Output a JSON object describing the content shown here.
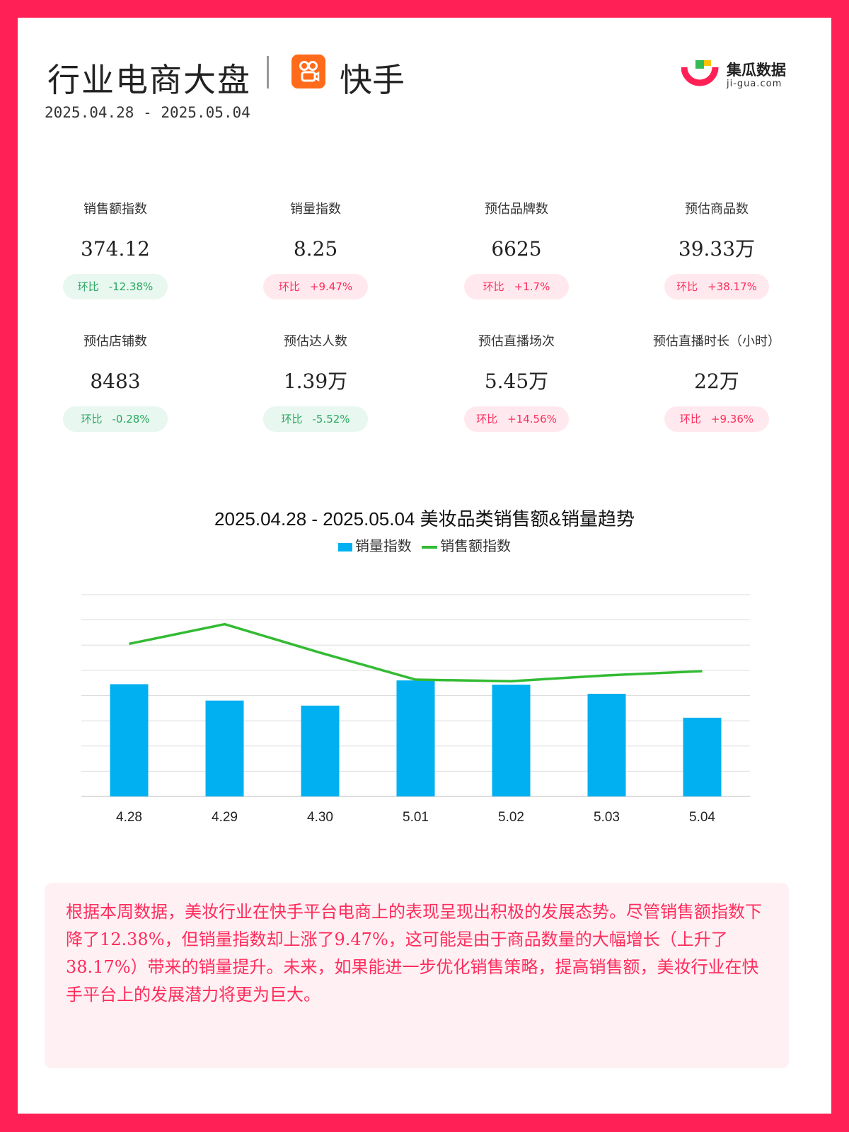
{
  "header": {
    "title": "行业电商大盘",
    "platform": "快手",
    "date_range": "2025.04.28 - 2025.05.04"
  },
  "brand": {
    "name": "集瓜数据",
    "url": "ji-gua.com"
  },
  "stats": [
    {
      "label": "销售额指数",
      "value": "374.12",
      "badge_prefix": "环比",
      "badge_value": "-12.38%",
      "trend": "down"
    },
    {
      "label": "销量指数",
      "value": "8.25",
      "badge_prefix": "环比",
      "badge_value": "+9.47%",
      "trend": "up"
    },
    {
      "label": "预估品牌数",
      "value": "6625",
      "badge_prefix": "环比",
      "badge_value": "+1.7%",
      "trend": "up"
    },
    {
      "label": "预估商品数",
      "value": "39.33万",
      "badge_prefix": "环比",
      "badge_value": "+38.17%",
      "trend": "up"
    },
    {
      "label": "预估店铺数",
      "value": "8483",
      "badge_prefix": "环比",
      "badge_value": "-0.28%",
      "trend": "down"
    },
    {
      "label": "预估达人数",
      "value": "1.39万",
      "badge_prefix": "环比",
      "badge_value": "-5.52%",
      "trend": "down"
    },
    {
      "label": "预估直播场次",
      "value": "5.45万",
      "badge_prefix": "环比",
      "badge_value": "+14.56%",
      "trend": "up"
    },
    {
      "label": "预估直播时长（小时）",
      "value": "22万",
      "badge_prefix": "环比",
      "badge_value": "+9.36%",
      "trend": "up"
    }
  ],
  "chart_data": {
    "type": "bar",
    "title": "2025.04.28 - 2025.05.04 美妆品类销售额&销量趋势",
    "categories": [
      "4.28",
      "4.29",
      "4.30",
      "5.01",
      "5.02",
      "5.03",
      "5.04"
    ],
    "series": [
      {
        "name": "销量指数",
        "type": "bar",
        "color": "#00b0f0",
        "values": [
          4.45,
          3.8,
          3.6,
          4.6,
          4.43,
          4.07,
          3.12
        ]
      },
      {
        "name": "销售额指数",
        "type": "line",
        "color": "#33bb33",
        "values": [
          6.05,
          6.83,
          5.7,
          4.63,
          4.57,
          4.8,
          4.97
        ]
      }
    ],
    "ylim": [
      0,
      8
    ],
    "grid": true,
    "legend": "top-center"
  },
  "summary": {
    "text": "根据本周数据，美妆行业在快手平台电商上的表现呈现出积极的发展态势。尽管销售额指数下降了12.38%，但销量指数却上涨了9.47%，这可能是由于商品数量的大幅增长（上升了38.17%）带来的销量提升。未来，如果能进一步优化销售策略，提高销售额，美妆行业在快手平台上的发展潜力将更为巨大。"
  },
  "colors": {
    "frame": "#ff2156",
    "up": "#ff2c5c",
    "down": "#2aa862",
    "platform_icon": "#ff6b1a"
  }
}
